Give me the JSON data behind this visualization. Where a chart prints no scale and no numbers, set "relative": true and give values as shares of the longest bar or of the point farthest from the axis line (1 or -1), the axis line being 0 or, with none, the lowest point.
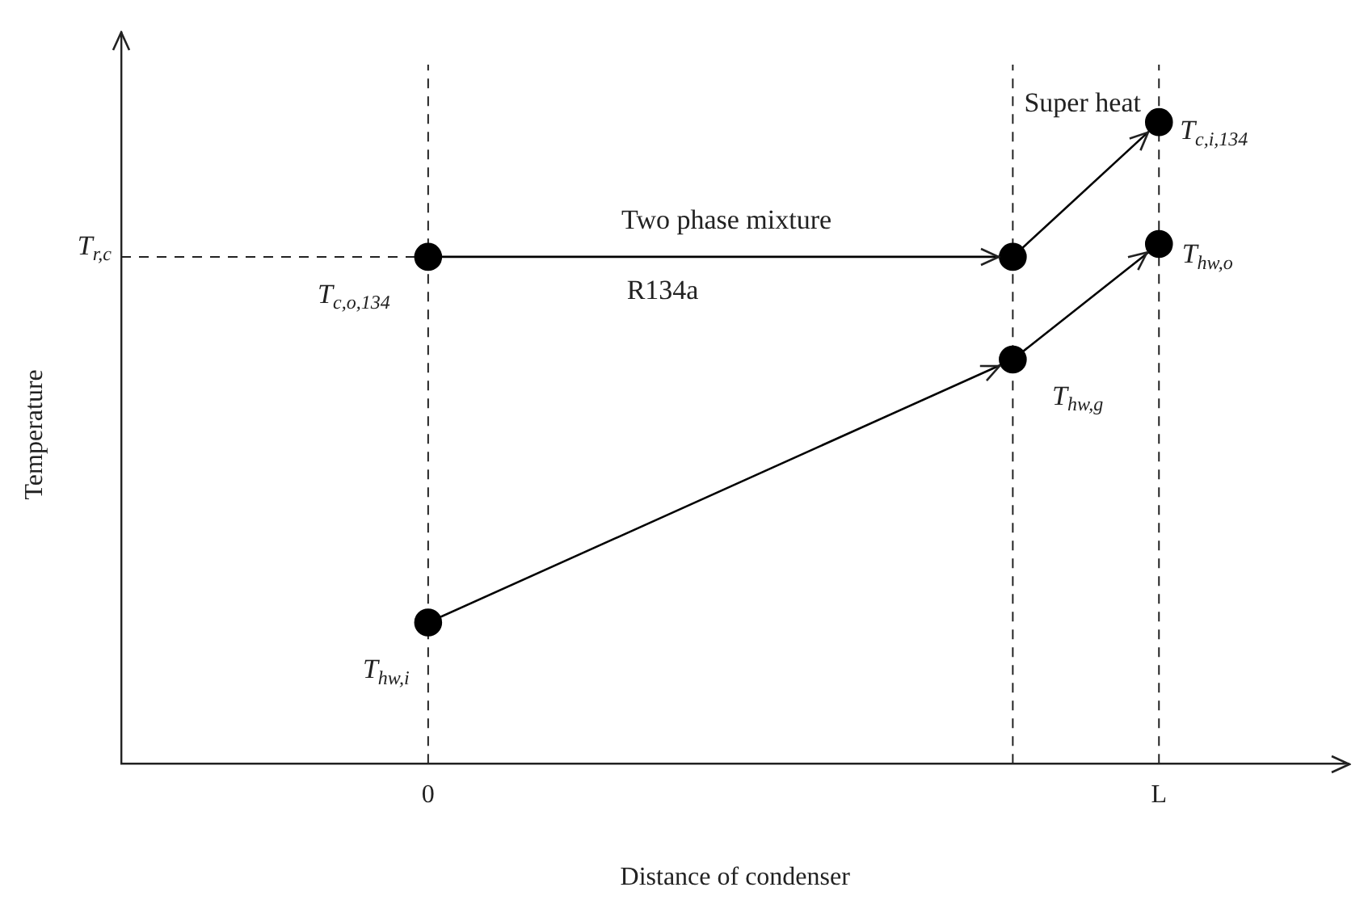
{
  "chart_data": {
    "type": "line",
    "relative": true,
    "xlabel": "Distance of condenser",
    "categories": [
      "0",
      null,
      null,
      null,
      null,
      "L"
    ],
    "series": [
      {
        "color": "#000000",
        "values": [
          0.79,
          null,
          null,
          null,
          0.79,
          1
        ]
      },
      {
        "color": "#000000",
        "values": [
          0.22,
          null,
          null,
          null,
          0.63,
          0.81
        ]
      }
    ],
    "marker": "circle",
    "line_style": "solid",
    "grid": "x",
    "legend": false,
    "ref_lines": [
      {
        "axis": "y",
        "value": 0.79,
        "label": "T$_{r,c}$",
        "line_style": "dashed"
      }
    ],
    "annotations": [
      "Super heat",
      "Two phase mixture",
      "R134a",
      "T$_{hw,g}$",
      "Temperature",
      {
        "text": "T$_{c,i,134}$",
        "x": "L",
        "y": 1
      },
      {
        "text": "T$_{hw,o}$",
        "x": "L",
        "y": 0.81
      },
      {
        "text": "T$_{hw,i}$",
        "x": "0",
        "y": 0.22
      },
      {
        "text": "T$_{c,o,134}$",
        "x": "0",
        "y": 0.79
      }
    ]
  }
}
